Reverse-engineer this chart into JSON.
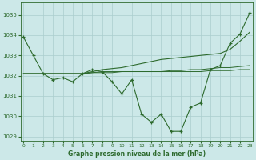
{
  "x": [
    0,
    1,
    2,
    3,
    4,
    5,
    6,
    7,
    8,
    9,
    10,
    11,
    12,
    13,
    14,
    15,
    16,
    17,
    18,
    19,
    20,
    21,
    22,
    23
  ],
  "y_main": [
    1033.9,
    1033.0,
    1032.1,
    1031.8,
    1031.9,
    1031.7,
    1032.1,
    1032.3,
    1032.2,
    1031.7,
    1031.1,
    1031.8,
    1030.1,
    1029.7,
    1030.1,
    1029.25,
    1029.25,
    1030.45,
    1030.65,
    1032.3,
    1032.5,
    1033.6,
    1034.05,
    1035.1
  ],
  "y_trend_diagonal": [
    1032.1,
    1032.1,
    1032.1,
    1032.1,
    1032.1,
    1032.1,
    1032.1,
    1032.2,
    1032.3,
    1032.35,
    1032.4,
    1032.5,
    1032.6,
    1032.7,
    1032.8,
    1032.85,
    1032.9,
    1032.95,
    1033.0,
    1033.05,
    1033.1,
    1033.3,
    1033.7,
    1034.15
  ],
  "y_flat1": [
    1032.1,
    1032.1,
    1032.1,
    1032.1,
    1032.1,
    1032.1,
    1032.1,
    1032.15,
    1032.15,
    1032.15,
    1032.2,
    1032.2,
    1032.2,
    1032.2,
    1032.2,
    1032.2,
    1032.2,
    1032.2,
    1032.2,
    1032.25,
    1032.25,
    1032.25,
    1032.3,
    1032.3
  ],
  "y_flat2": [
    1032.1,
    1032.1,
    1032.1,
    1032.1,
    1032.1,
    1032.1,
    1032.1,
    1032.15,
    1032.2,
    1032.2,
    1032.2,
    1032.2,
    1032.2,
    1032.2,
    1032.2,
    1032.25,
    1032.25,
    1032.3,
    1032.3,
    1032.35,
    1032.4,
    1032.4,
    1032.45,
    1032.5
  ],
  "line_color": "#2d6a2d",
  "bg_color": "#cce8e8",
  "grid_color": "#aacece",
  "xlabel": "Graphe pression niveau de la mer (hPa)",
  "ylim": [
    1028.8,
    1035.6
  ],
  "xlim": [
    -0.3,
    23.3
  ],
  "yticks": [
    1029,
    1030,
    1031,
    1032,
    1033,
    1034,
    1035
  ],
  "xticks": [
    0,
    1,
    2,
    3,
    4,
    5,
    6,
    7,
    8,
    9,
    10,
    11,
    12,
    13,
    14,
    15,
    16,
    17,
    18,
    19,
    20,
    21,
    22,
    23
  ]
}
